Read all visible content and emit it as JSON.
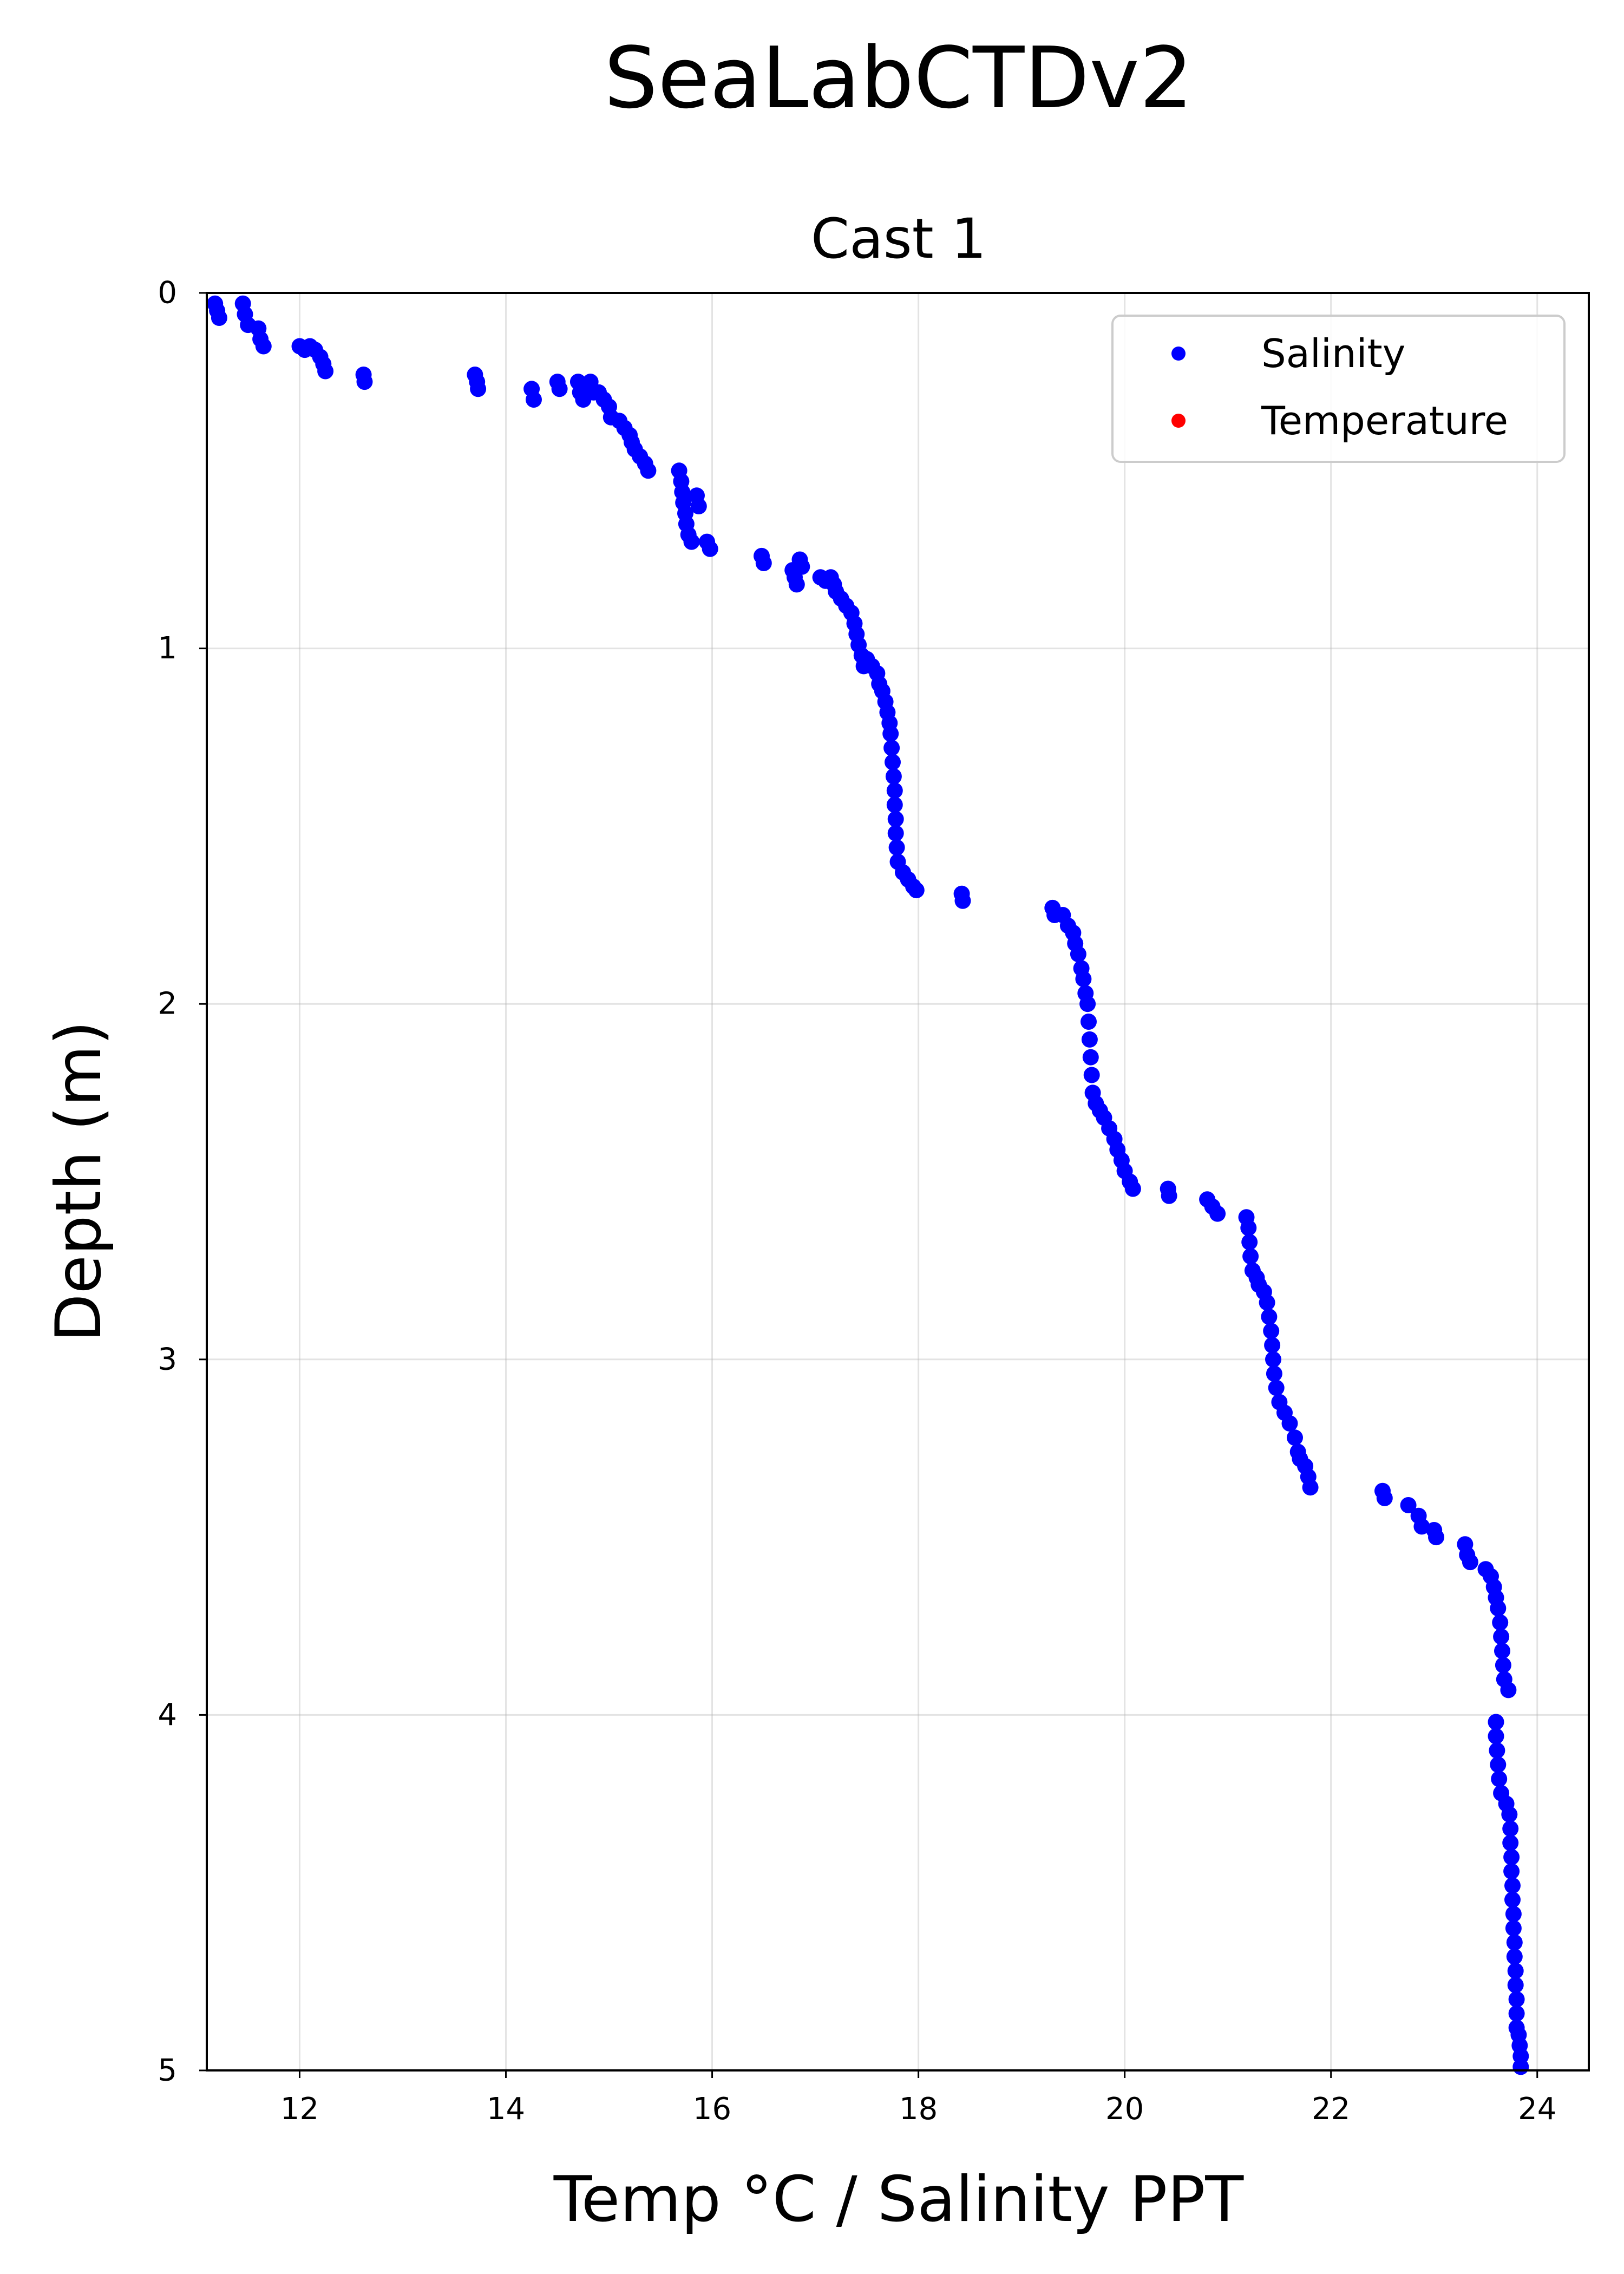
{
  "figure": {
    "suptitle": "SeaLabCTDv2"
  },
  "chart_data": {
    "type": "scatter",
    "title": "Cast 1",
    "xlabel": "Temp °C / Salinity PPT",
    "ylabel": "Depth (m)",
    "xlim": [
      11.1,
      24.5
    ],
    "ylim": [
      0,
      5
    ],
    "y_inverted": true,
    "x_ticks": [
      12,
      14,
      16,
      18,
      20,
      22,
      24
    ],
    "y_ticks": [
      0,
      1,
      2,
      3,
      4,
      5
    ],
    "grid": true,
    "legend_position": "top-right",
    "series": [
      {
        "name": "Salinity",
        "color": "#0000ff",
        "marker": "circle",
        "points": [
          [
            11.18,
            0.03
          ],
          [
            11.2,
            0.05
          ],
          [
            11.22,
            0.07
          ],
          [
            11.45,
            0.03
          ],
          [
            11.47,
            0.06
          ],
          [
            11.5,
            0.09
          ],
          [
            11.6,
            0.1
          ],
          [
            11.62,
            0.13
          ],
          [
            11.65,
            0.15
          ],
          [
            12.0,
            0.15
          ],
          [
            12.05,
            0.16
          ],
          [
            12.1,
            0.15
          ],
          [
            12.15,
            0.16
          ],
          [
            12.2,
            0.18
          ],
          [
            12.23,
            0.2
          ],
          [
            12.25,
            0.22
          ],
          [
            12.62,
            0.23
          ],
          [
            12.63,
            0.25
          ],
          [
            13.7,
            0.23
          ],
          [
            13.72,
            0.25
          ],
          [
            13.73,
            0.27
          ],
          [
            14.25,
            0.27
          ],
          [
            14.27,
            0.3
          ],
          [
            14.5,
            0.25
          ],
          [
            14.52,
            0.27
          ],
          [
            14.7,
            0.25
          ],
          [
            14.72,
            0.28
          ],
          [
            14.75,
            0.3
          ],
          [
            14.82,
            0.25
          ],
          [
            14.85,
            0.28
          ],
          [
            14.9,
            0.28
          ],
          [
            14.95,
            0.3
          ],
          [
            15.0,
            0.32
          ],
          [
            15.02,
            0.35
          ],
          [
            15.1,
            0.36
          ],
          [
            15.15,
            0.38
          ],
          [
            15.2,
            0.4
          ],
          [
            15.22,
            0.42
          ],
          [
            15.25,
            0.44
          ],
          [
            15.3,
            0.46
          ],
          [
            15.35,
            0.48
          ],
          [
            15.38,
            0.5
          ],
          [
            15.68,
            0.5
          ],
          [
            15.7,
            0.53
          ],
          [
            15.71,
            0.56
          ],
          [
            15.72,
            0.59
          ],
          [
            15.74,
            0.62
          ],
          [
            15.75,
            0.65
          ],
          [
            15.77,
            0.68
          ],
          [
            15.8,
            0.7
          ],
          [
            15.85,
            0.57
          ],
          [
            15.87,
            0.6
          ],
          [
            15.95,
            0.7
          ],
          [
            15.98,
            0.72
          ],
          [
            16.48,
            0.74
          ],
          [
            16.5,
            0.76
          ],
          [
            16.78,
            0.78
          ],
          [
            16.8,
            0.8
          ],
          [
            16.82,
            0.82
          ],
          [
            16.85,
            0.75
          ],
          [
            16.87,
            0.77
          ],
          [
            17.05,
            0.8
          ],
          [
            17.1,
            0.81
          ],
          [
            17.15,
            0.8
          ],
          [
            17.18,
            0.82
          ],
          [
            17.2,
            0.84
          ],
          [
            17.25,
            0.86
          ],
          [
            17.3,
            0.88
          ],
          [
            17.35,
            0.9
          ],
          [
            17.38,
            0.93
          ],
          [
            17.4,
            0.96
          ],
          [
            17.42,
            0.99
          ],
          [
            17.45,
            1.02
          ],
          [
            17.47,
            1.05
          ],
          [
            17.5,
            1.03
          ],
          [
            17.55,
            1.05
          ],
          [
            17.6,
            1.07
          ],
          [
            17.62,
            1.1
          ],
          [
            17.65,
            1.12
          ],
          [
            17.68,
            1.15
          ],
          [
            17.7,
            1.18
          ],
          [
            17.72,
            1.21
          ],
          [
            17.73,
            1.24
          ],
          [
            17.74,
            1.28
          ],
          [
            17.75,
            1.32
          ],
          [
            17.76,
            1.36
          ],
          [
            17.77,
            1.4
          ],
          [
            17.77,
            1.44
          ],
          [
            17.78,
            1.48
          ],
          [
            17.78,
            1.52
          ],
          [
            17.79,
            1.56
          ],
          [
            17.8,
            1.6
          ],
          [
            17.85,
            1.63
          ],
          [
            17.9,
            1.65
          ],
          [
            17.95,
            1.67
          ],
          [
            17.98,
            1.68
          ],
          [
            18.42,
            1.69
          ],
          [
            18.43,
            1.71
          ],
          [
            19.3,
            1.73
          ],
          [
            19.32,
            1.75
          ],
          [
            19.4,
            1.75
          ],
          [
            19.45,
            1.78
          ],
          [
            19.5,
            1.8
          ],
          [
            19.52,
            1.83
          ],
          [
            19.55,
            1.86
          ],
          [
            19.58,
            1.9
          ],
          [
            19.6,
            1.93
          ],
          [
            19.62,
            1.97
          ],
          [
            19.64,
            2.0
          ],
          [
            19.65,
            2.05
          ],
          [
            19.66,
            2.1
          ],
          [
            19.67,
            2.15
          ],
          [
            19.68,
            2.2
          ],
          [
            19.69,
            2.25
          ],
          [
            19.72,
            2.28
          ],
          [
            19.76,
            2.3
          ],
          [
            19.8,
            2.32
          ],
          [
            19.85,
            2.35
          ],
          [
            19.9,
            2.38
          ],
          [
            19.93,
            2.41
          ],
          [
            19.97,
            2.44
          ],
          [
            20.0,
            2.47
          ],
          [
            20.05,
            2.5
          ],
          [
            20.08,
            2.52
          ],
          [
            20.42,
            2.52
          ],
          [
            20.43,
            2.54
          ],
          [
            20.8,
            2.55
          ],
          [
            20.85,
            2.57
          ],
          [
            20.9,
            2.59
          ],
          [
            21.18,
            2.6
          ],
          [
            21.2,
            2.63
          ],
          [
            21.21,
            2.67
          ],
          [
            21.22,
            2.71
          ],
          [
            21.24,
            2.75
          ],
          [
            21.28,
            2.77
          ],
          [
            21.3,
            2.79
          ],
          [
            21.35,
            2.81
          ],
          [
            21.38,
            2.84
          ],
          [
            21.4,
            2.88
          ],
          [
            21.42,
            2.92
          ],
          [
            21.43,
            2.96
          ],
          [
            21.44,
            3.0
          ],
          [
            21.45,
            3.04
          ],
          [
            21.47,
            3.08
          ],
          [
            21.5,
            3.12
          ],
          [
            21.55,
            3.15
          ],
          [
            21.6,
            3.18
          ],
          [
            21.65,
            3.22
          ],
          [
            21.68,
            3.26
          ],
          [
            21.7,
            3.28
          ],
          [
            21.75,
            3.3
          ],
          [
            21.78,
            3.33
          ],
          [
            21.8,
            3.36
          ],
          [
            22.5,
            3.37
          ],
          [
            22.52,
            3.39
          ],
          [
            22.75,
            3.41
          ],
          [
            22.85,
            3.44
          ],
          [
            22.88,
            3.47
          ],
          [
            23.0,
            3.48
          ],
          [
            23.02,
            3.5
          ],
          [
            23.3,
            3.52
          ],
          [
            23.32,
            3.55
          ],
          [
            23.35,
            3.57
          ],
          [
            23.5,
            3.59
          ],
          [
            23.55,
            3.61
          ],
          [
            23.58,
            3.64
          ],
          [
            23.6,
            3.67
          ],
          [
            23.62,
            3.7
          ],
          [
            23.64,
            3.74
          ],
          [
            23.65,
            3.78
          ],
          [
            23.66,
            3.82
          ],
          [
            23.67,
            3.86
          ],
          [
            23.68,
            3.9
          ],
          [
            23.72,
            3.93
          ],
          [
            23.6,
            4.02
          ],
          [
            23.6,
            4.06
          ],
          [
            23.61,
            4.1
          ],
          [
            23.62,
            4.14
          ],
          [
            23.63,
            4.18
          ],
          [
            23.65,
            4.22
          ],
          [
            23.7,
            4.25
          ],
          [
            23.73,
            4.28
          ],
          [
            23.74,
            4.32
          ],
          [
            23.74,
            4.36
          ],
          [
            23.75,
            4.4
          ],
          [
            23.75,
            4.44
          ],
          [
            23.76,
            4.48
          ],
          [
            23.76,
            4.52
          ],
          [
            23.77,
            4.56
          ],
          [
            23.77,
            4.6
          ],
          [
            23.78,
            4.64
          ],
          [
            23.78,
            4.68
          ],
          [
            23.79,
            4.72
          ],
          [
            23.79,
            4.76
          ],
          [
            23.8,
            4.8
          ],
          [
            23.8,
            4.84
          ],
          [
            23.8,
            4.88
          ],
          [
            23.82,
            4.9
          ],
          [
            23.83,
            4.93
          ],
          [
            23.84,
            4.96
          ],
          [
            23.84,
            4.99
          ]
        ]
      },
      {
        "name": "Temperature",
        "color": "#ff0000",
        "marker": "circle",
        "points": []
      }
    ]
  }
}
